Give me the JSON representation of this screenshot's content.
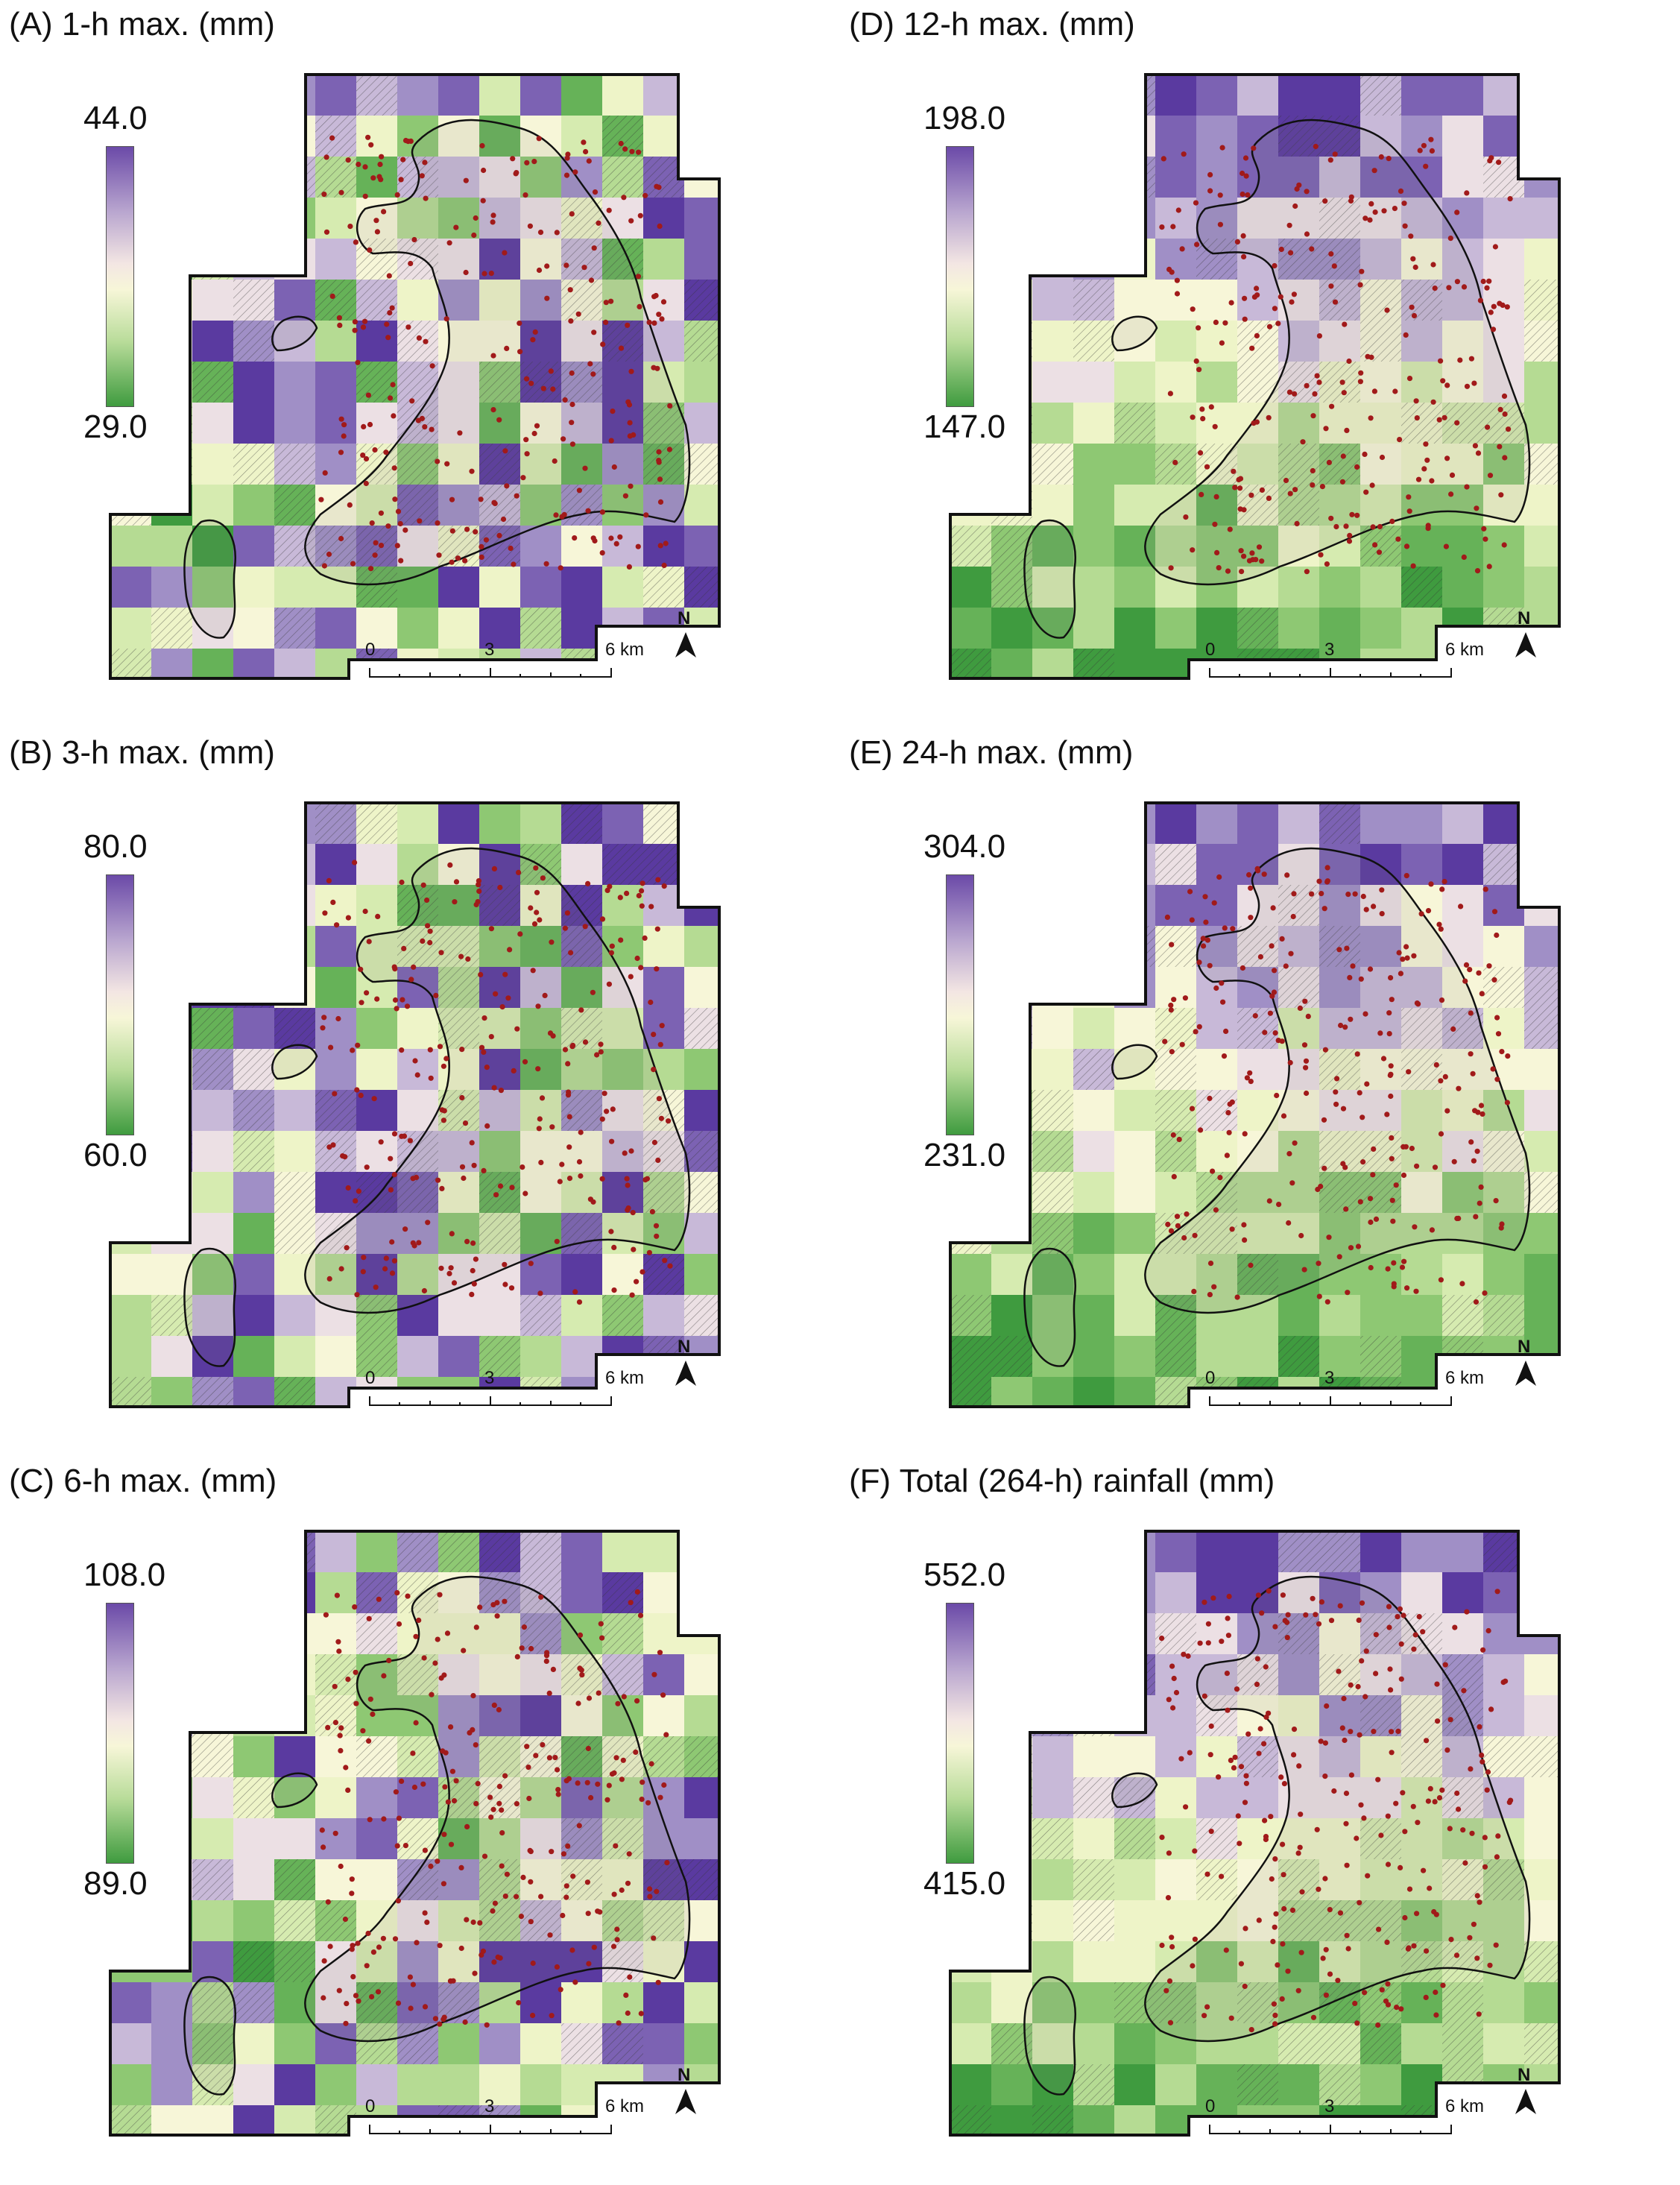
{
  "colors": {
    "legend_top": "#6b4aa8",
    "legend_mid": "#f5f3d6",
    "legend_bottom": "#3f9b3f",
    "landslide_points": "#a11a1a",
    "coastline": "#111111"
  },
  "scale_bar": {
    "label_0": "0",
    "label_mid": "3",
    "label_end": "6 km"
  },
  "north_arrow": {
    "label": "N"
  },
  "panels": [
    {
      "title": "(A) 1-h max. (mm)",
      "legend_max": "44.0",
      "legend_min": "29.0"
    },
    {
      "title": "(D) 12-h max. (mm)",
      "legend_max": "198.0",
      "legend_min": "147.0"
    },
    {
      "title": "(B) 3-h max. (mm)",
      "legend_max": "80.0",
      "legend_min": "60.0"
    },
    {
      "title": "(E) 24-h max. (mm)",
      "legend_max": "304.0",
      "legend_min": "231.0"
    },
    {
      "title": "(C) 6-h max. (mm)",
      "legend_max": "108.0",
      "legend_min": "89.0"
    },
    {
      "title": "(F) Total (264-h) rainfall (mm)",
      "legend_max": "552.0",
      "legend_min": "415.0"
    }
  ]
}
